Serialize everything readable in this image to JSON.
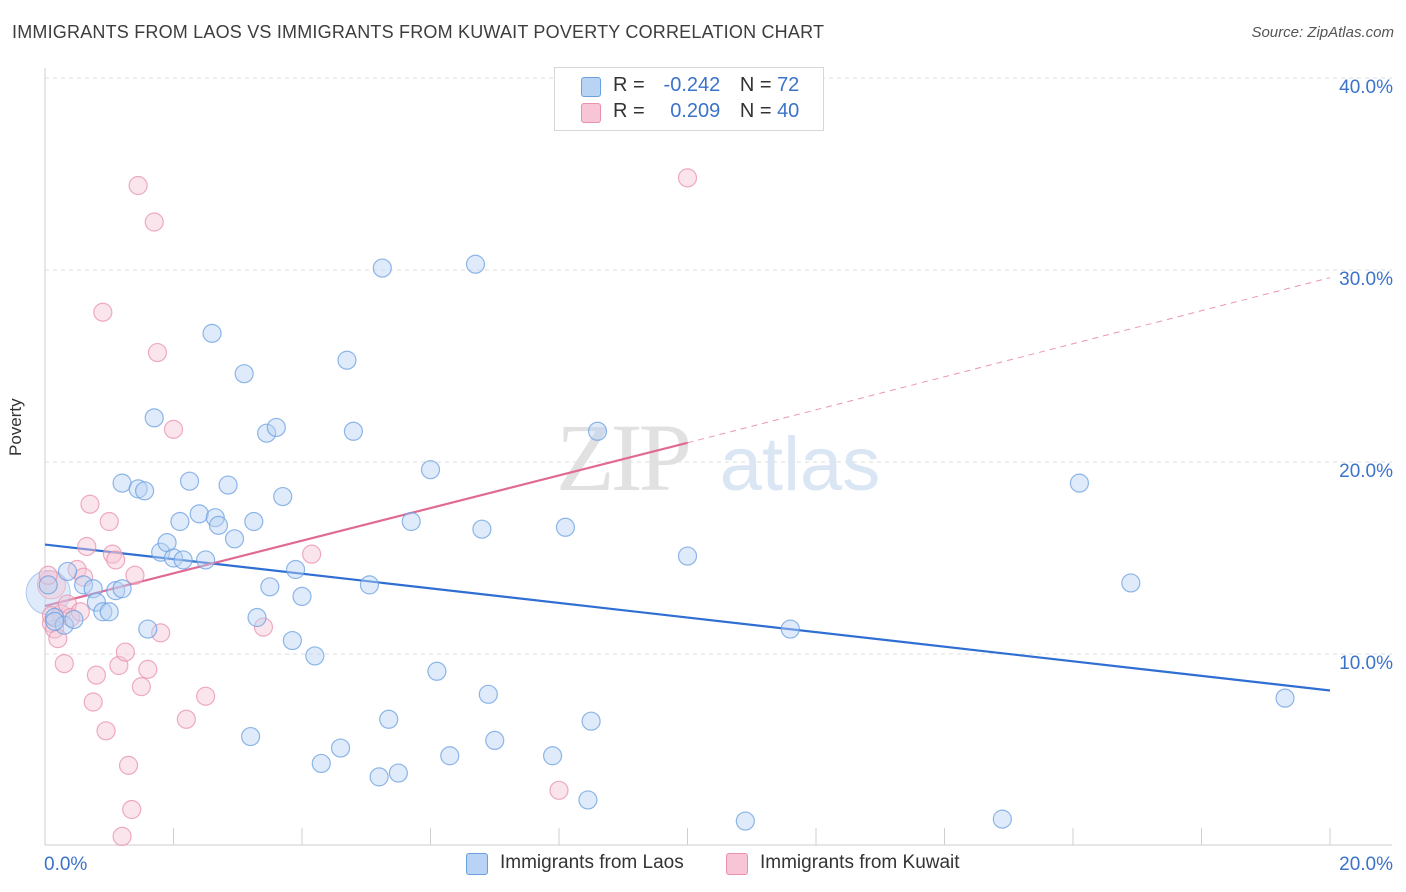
{
  "title": "IMMIGRANTS FROM LAOS VS IMMIGRANTS FROM KUWAIT POVERTY CORRELATION CHART",
  "source": "Source: ZipAtlas.com",
  "watermark": {
    "zip": "ZIP",
    "atlas": "atlas"
  },
  "legend_top": {
    "rows": [
      {
        "r_label": "R =",
        "r_value": "-0.242",
        "n_label": "N =",
        "n_value": "72"
      },
      {
        "r_label": "R =",
        "r_value": "0.209",
        "n_label": "N =",
        "n_value": "40"
      }
    ]
  },
  "legend_bottom": {
    "laos": "Immigrants from Laos",
    "kuwait": "Immigrants from Kuwait"
  },
  "colors": {
    "laos": "#6a9fe0",
    "laos_fill": "#b9d3f5",
    "laos_line": "#2f6ed3",
    "kuwait": "#e890ad",
    "kuwait_fill": "#f7c5d5",
    "kuwait_line": "#e06a94",
    "axis_label": "#3b73c9"
  },
  "chart_data": {
    "type": "scatter",
    "title": "IMMIGRANTS FROM LAOS VS IMMIGRANTS FROM KUWAIT POVERTY CORRELATION CHART",
    "xlabel": "",
    "ylabel": "Poverty",
    "xlim": [
      0,
      20
    ],
    "ylim": [
      0,
      42
    ],
    "x_ticks": [
      "0.0%",
      "20.0%"
    ],
    "y_ticks": [
      {
        "value": 10,
        "label": "10.0%"
      },
      {
        "value": 20,
        "label": "20.0%"
      },
      {
        "value": 30,
        "label": "30.0%"
      },
      {
        "value": 40,
        "label": "40.0%"
      }
    ],
    "grid": true,
    "series": [
      {
        "name": "Immigrants from Laos",
        "r": -0.242,
        "n": 72,
        "trend": {
          "x": [
            0,
            20
          ],
          "y": [
            15.7,
            8.1
          ]
        },
        "points": [
          [
            0.05,
            13.6
          ],
          [
            0.15,
            11.9
          ],
          [
            0.3,
            11.5
          ],
          [
            0.35,
            14.3
          ],
          [
            0.45,
            11.8
          ],
          [
            0.6,
            13.6
          ],
          [
            0.75,
            13.4
          ],
          [
            0.8,
            12.7
          ],
          [
            0.9,
            12.2
          ],
          [
            1.0,
            12.2
          ],
          [
            1.1,
            13.3
          ],
          [
            1.2,
            13.4
          ],
          [
            1.2,
            18.9
          ],
          [
            1.45,
            18.6
          ],
          [
            1.55,
            18.5
          ],
          [
            1.6,
            11.3
          ],
          [
            1.7,
            22.3
          ],
          [
            1.8,
            15.3
          ],
          [
            1.9,
            15.8
          ],
          [
            2.0,
            15.0
          ],
          [
            2.1,
            16.9
          ],
          [
            2.15,
            14.9
          ],
          [
            2.25,
            19.0
          ],
          [
            2.4,
            17.3
          ],
          [
            2.5,
            14.9
          ],
          [
            2.6,
            26.7
          ],
          [
            2.65,
            17.1
          ],
          [
            2.7,
            16.7
          ],
          [
            2.85,
            18.8
          ],
          [
            2.95,
            16.0
          ],
          [
            3.1,
            24.6
          ],
          [
            3.2,
            5.7
          ],
          [
            3.25,
            16.9
          ],
          [
            3.3,
            11.9
          ],
          [
            3.45,
            21.5
          ],
          [
            3.5,
            13.5
          ],
          [
            3.6,
            21.8
          ],
          [
            3.7,
            18.2
          ],
          [
            3.85,
            10.7
          ],
          [
            3.9,
            14.4
          ],
          [
            4.0,
            13.0
          ],
          [
            4.2,
            9.9
          ],
          [
            4.3,
            4.3
          ],
          [
            4.6,
            5.1
          ],
          [
            4.7,
            25.3
          ],
          [
            4.8,
            21.6
          ],
          [
            5.05,
            13.6
          ],
          [
            5.2,
            3.6
          ],
          [
            5.25,
            30.1
          ],
          [
            5.35,
            6.6
          ],
          [
            5.5,
            3.8
          ],
          [
            5.7,
            16.9
          ],
          [
            6.0,
            19.6
          ],
          [
            6.1,
            9.1
          ],
          [
            6.3,
            4.7
          ],
          [
            6.7,
            30.3
          ],
          [
            6.8,
            16.5
          ],
          [
            6.9,
            7.9
          ],
          [
            7.0,
            5.5
          ],
          [
            7.9,
            4.7
          ],
          [
            8.1,
            16.6
          ],
          [
            8.45,
            2.4
          ],
          [
            8.5,
            6.5
          ],
          [
            8.6,
            21.6
          ],
          [
            10.0,
            15.1
          ],
          [
            10.9,
            1.3
          ],
          [
            11.6,
            11.3
          ],
          [
            14.9,
            1.4
          ],
          [
            16.1,
            18.9
          ],
          [
            16.9,
            13.7
          ],
          [
            19.3,
            7.7
          ],
          [
            0.15,
            11.7
          ]
        ]
      },
      {
        "name": "Immigrants from Kuwait",
        "r": 0.209,
        "n": 40,
        "trend": {
          "x": [
            0,
            10
          ],
          "y": [
            12.5,
            21.0
          ],
          "dashed_to": {
            "x": 20,
            "y": 29.6
          }
        },
        "points": [
          [
            0.05,
            14.1
          ],
          [
            0.1,
            11.6
          ],
          [
            0.15,
            11.3
          ],
          [
            0.2,
            10.8
          ],
          [
            0.25,
            12.1
          ],
          [
            0.3,
            9.5
          ],
          [
            0.35,
            12.6
          ],
          [
            0.4,
            11.9
          ],
          [
            0.5,
            14.4
          ],
          [
            0.55,
            12.2
          ],
          [
            0.6,
            14.0
          ],
          [
            0.65,
            15.6
          ],
          [
            0.7,
            17.8
          ],
          [
            0.75,
            7.5
          ],
          [
            0.8,
            8.9
          ],
          [
            0.9,
            27.8
          ],
          [
            0.95,
            6.0
          ],
          [
            1.0,
            16.9
          ],
          [
            1.05,
            15.2
          ],
          [
            1.1,
            14.9
          ],
          [
            1.15,
            9.4
          ],
          [
            1.2,
            0.5
          ],
          [
            1.25,
            10.1
          ],
          [
            1.3,
            4.2
          ],
          [
            1.35,
            1.9
          ],
          [
            1.4,
            14.1
          ],
          [
            1.45,
            34.4
          ],
          [
            1.5,
            8.3
          ],
          [
            1.6,
            9.2
          ],
          [
            1.7,
            32.5
          ],
          [
            1.75,
            25.7
          ],
          [
            1.8,
            11.1
          ],
          [
            2.0,
            21.7
          ],
          [
            2.2,
            6.6
          ],
          [
            2.5,
            7.8
          ],
          [
            3.4,
            11.4
          ],
          [
            4.15,
            15.2
          ],
          [
            8.0,
            2.9
          ],
          [
            10.0,
            34.8
          ],
          [
            0.1,
            12.0
          ]
        ]
      }
    ]
  }
}
